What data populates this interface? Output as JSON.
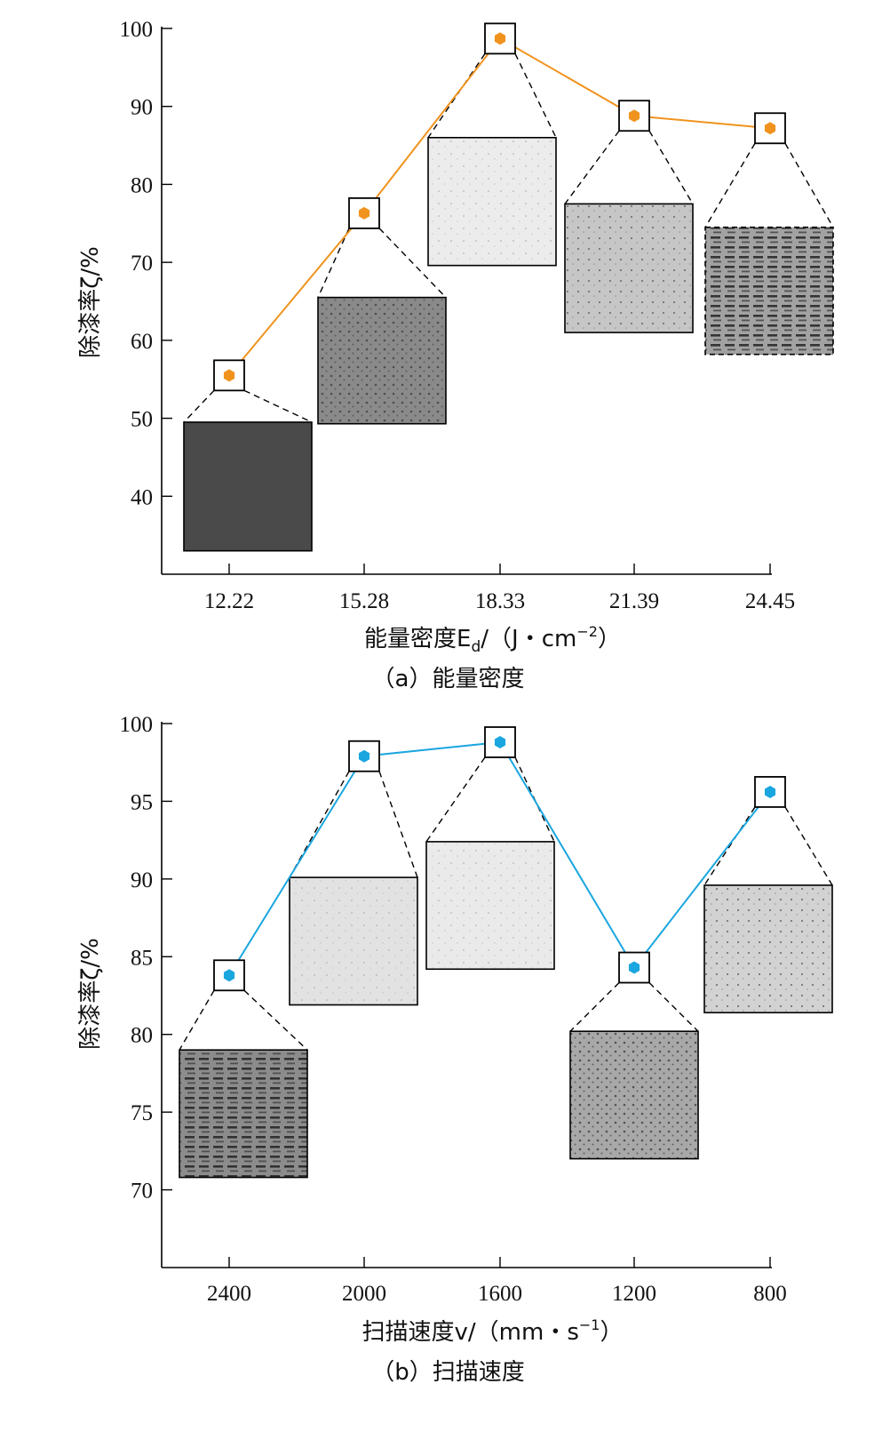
{
  "chart_data": [
    {
      "type": "line",
      "caption": "（a）能量密度",
      "xlabel": "能量密度E",
      "xlabel_sub": "d",
      "xlabel_unit": "/（J・cm",
      "xlabel_sup": "−2",
      "xlabel_tail": "）",
      "ylabel": "除漆率ζ/%",
      "categories": [
        "12.22",
        "15.28",
        "18.33",
        "21.39",
        "24.45"
      ],
      "yticks": [
        "100",
        "90",
        "80",
        "70",
        "60",
        "50",
        "40"
      ],
      "ylim": [
        30,
        100
      ],
      "color": "#f0931e",
      "series": [
        {
          "values": [
            55.5,
            76.3,
            98.7,
            88.8,
            87.2
          ]
        }
      ],
      "thumbnails": [
        {
          "shade": "#4a4a4a",
          "style": "dark-rough",
          "y_top": 49.5,
          "y_bottom": 33
        },
        {
          "shade": "#8a8a8a",
          "style": "medium",
          "y_top": 65.5,
          "y_bottom": 49.3
        },
        {
          "shade": "#ececec",
          "style": "clean",
          "y_top": 86,
          "y_bottom": 69.6
        },
        {
          "shade": "#c6c6c6",
          "style": "light-spots",
          "y_top": 77.5,
          "y_bottom": 61
        },
        {
          "shade": "#a2a2a2",
          "style": "streaks",
          "y_top": 74.5,
          "y_bottom": 58.2
        }
      ]
    },
    {
      "type": "line",
      "caption": "（b）扫描速度",
      "xlabel": "扫描速度v/（mm・s",
      "xlabel_sup": "−1",
      "xlabel_tail": "）",
      "ylabel": "除漆率ζ/%",
      "categories": [
        "2400",
        "2000",
        "1600",
        "1200",
        "800"
      ],
      "yticks": [
        "100",
        "95",
        "90",
        "85",
        "80",
        "75",
        "70"
      ],
      "ylim": [
        65,
        100
      ],
      "color": "#1aa6df",
      "series": [
        {
          "values": [
            83.8,
            97.9,
            98.8,
            84.3,
            95.6
          ]
        }
      ],
      "thumbnails": [
        {
          "shade": "#8c8c8c",
          "style": "streaks",
          "y_top": 79,
          "y_bottom": 70.8
        },
        {
          "shade": "#e2e2e2",
          "style": "clean",
          "y_top": 90.1,
          "y_bottom": 81.9
        },
        {
          "shade": "#eaeaea",
          "style": "clean",
          "y_top": 92.4,
          "y_bottom": 84.2
        },
        {
          "shade": "#a8a8a8",
          "style": "medium",
          "y_top": 80.2,
          "y_bottom": 72
        },
        {
          "shade": "#d2d2d2",
          "style": "light-spots",
          "y_top": 89.6,
          "y_bottom": 81.4
        }
      ]
    }
  ]
}
